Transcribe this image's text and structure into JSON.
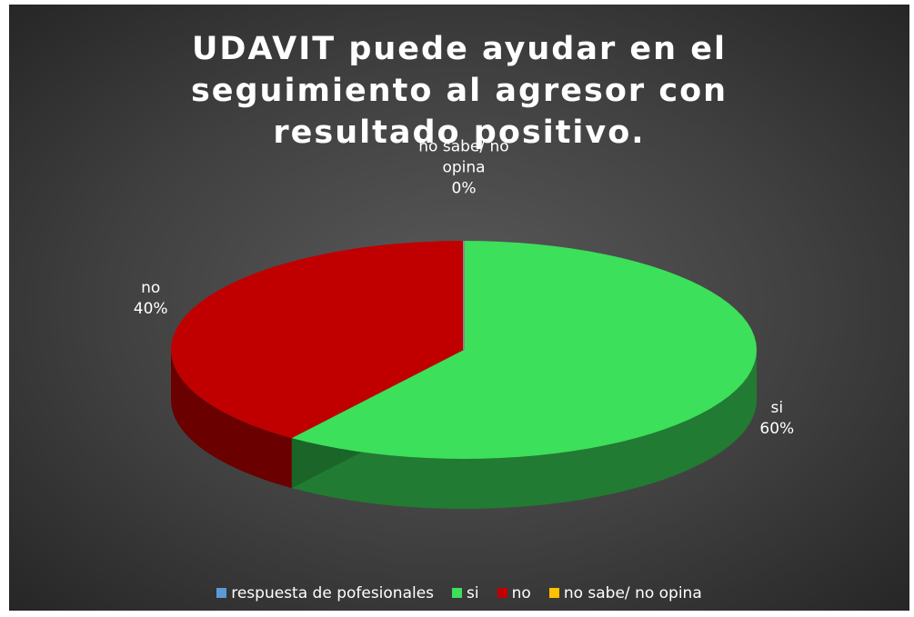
{
  "chart_data": {
    "type": "pie3d",
    "title": "UDAVIT puede ayudar en el seguimiento al agresor con resultado positivo.",
    "categories": [
      "respuesta de pofesionales",
      "si",
      "no",
      "no sabe/ no opina"
    ],
    "values": [
      null,
      60,
      40,
      0
    ],
    "value_labels": [
      null,
      "60%",
      "40%",
      "0%"
    ],
    "colors": [
      "#5b9bd5",
      "#3ce05a",
      "#c00000",
      "#ffc000"
    ],
    "legend": "bottom"
  }
}
